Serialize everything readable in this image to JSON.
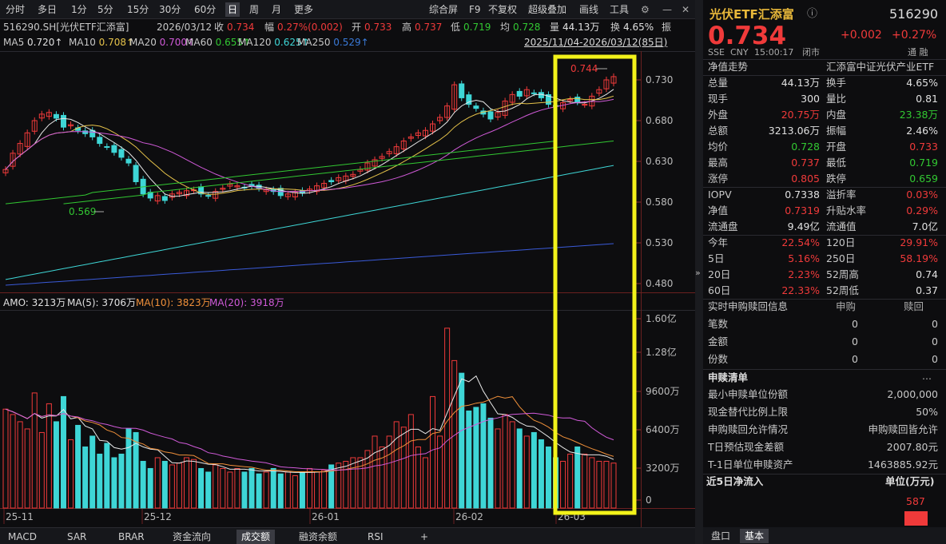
{
  "toolbar": {
    "left": [
      "分时",
      "多日",
      "1分",
      "5分",
      "15分",
      "30分",
      "60分",
      "日",
      "周",
      "月",
      "更多"
    ],
    "active": "日",
    "right": [
      "综合屏",
      "F9",
      "不复权",
      "超级叠加",
      "画线",
      "工具"
    ]
  },
  "info": {
    "code": "516290.SH[光伏ETF汇添富]",
    "date": "2026/03/12",
    "close_l": "收",
    "close": "0.734",
    "amp_l": "幅",
    "amp": "0.27%(0.002)",
    "open_l": "开",
    "open": "0.733",
    "high_l": "高",
    "high": "0.737",
    "low_l": "低",
    "low": "0.719",
    "avg_l": "均",
    "avg": "0.728",
    "vol_l": "量",
    "vol": "44.13万",
    "turn_l": "换",
    "turn": "4.65%",
    "amp2": "振",
    "range": "2025/11/04-2026/03/12(85日)"
  },
  "ma_line": [
    {
      "t": "MA5",
      "v": "0.720↑",
      "c": "wht"
    },
    {
      "t": "MA10",
      "v": "0.708↑",
      "c": "yel"
    },
    {
      "t": "MA20",
      "v": "0.700↑",
      "c": "mag"
    },
    {
      "t": "MA60",
      "v": "0.655↑",
      "c": "grn"
    },
    {
      "t": "MA120",
      "v": "0.625↑",
      "c": "cyn"
    },
    {
      "t": "MA250",
      "v": "0.529↑",
      "c": "blu"
    }
  ],
  "amo_line": {
    "amo": "AMO: 3213万",
    "ma5": "MA(5): 3706万",
    "ma10": "MA(10): 3823万",
    "ma20": "MA(20): 3918万"
  },
  "price_axis": [
    "0.730",
    "0.680",
    "0.630",
    "0.580",
    "0.530",
    "0.480"
  ],
  "vol_axis": [
    "1.60亿",
    "1.28亿",
    "9600万",
    "6400万",
    "3200万",
    "0"
  ],
  "date_axis": [
    "25-11",
    "25-12",
    "26-01",
    "26-02",
    "26-03"
  ],
  "chart_labels": {
    "high": "0.744",
    "low": "0.569"
  },
  "bottom_tabs": [
    "MACD",
    "SAR",
    "BRAR",
    "资金流向",
    "成交额",
    "融资余额",
    "RSI",
    "+"
  ],
  "bottom_active": "成交额",
  "right": {
    "title": "光伏ETF汇添富",
    "code": "516290",
    "price": "0.734",
    "change": "+0.002",
    "pct": "+0.27%",
    "sub": [
      "SSE",
      "CNY",
      "15:00:17",
      "闭市"
    ],
    "tongrong": "通 融",
    "nav_label": "净值走势",
    "fund_name": "汇添富中证光伏产业ETF",
    "stats": [
      [
        "总量",
        "44.13万",
        "wht",
        "换手",
        "4.65%",
        "wht"
      ],
      [
        "现手",
        "300",
        "wht",
        "量比",
        "0.81",
        "wht"
      ],
      [
        "外盘",
        "20.75万",
        "red",
        "内盘",
        "23.38万",
        "grn"
      ],
      [
        "总额",
        "3213.06万",
        "wht",
        "振幅",
        "2.46%",
        "wht"
      ],
      [
        "均价",
        "0.728",
        "grn",
        "开盘",
        "0.733",
        "red"
      ],
      [
        "最高",
        "0.737",
        "red",
        "最低",
        "0.719",
        "grn"
      ],
      [
        "涨停",
        "0.805",
        "red",
        "跌停",
        "0.659",
        "grn"
      ]
    ],
    "stats2": [
      [
        "IOPV",
        "0.7338",
        "wht",
        "溢折率",
        "0.03%",
        "red"
      ],
      [
        "净值",
        "0.7319",
        "red",
        "升贴水率",
        "0.29%",
        "red"
      ],
      [
        "流通盘",
        "9.49亿",
        "wht",
        "流通值",
        "7.0亿",
        "wht"
      ]
    ],
    "perf": [
      [
        "今年",
        "22.54%",
        "red",
        "120日",
        "29.91%",
        "red"
      ],
      [
        "5日",
        "5.16%",
        "red",
        "250日",
        "58.19%",
        "red"
      ],
      [
        "20日",
        "2.23%",
        "red",
        "52周高",
        "0.74",
        "wht"
      ],
      [
        "60日",
        "22.33%",
        "red",
        "52周低",
        "0.37",
        "wht"
      ]
    ],
    "sub_title": "实时申购赎回信息",
    "sub_cols": [
      "申购",
      "赎回"
    ],
    "sub_rows": [
      [
        "笔数",
        "0",
        "0"
      ],
      [
        "金额",
        "0",
        "0"
      ],
      [
        "份数",
        "0",
        "0"
      ]
    ],
    "list_title": "申赎清单",
    "list_more": "...",
    "list_rows": [
      [
        "最小申赎单位份额",
        "2,000,000"
      ],
      [
        "现金替代比例上限",
        "50%"
      ],
      [
        "申购赎回允许情况",
        "申购赎回皆允许"
      ],
      [
        "T日预估现金差额",
        "2007.80元"
      ],
      [
        "T-1日单位申赎资产",
        "1463885.92元"
      ]
    ],
    "flow_title": "近5日净流入",
    "flow_unit": "单位(万元)",
    "flow_value": "587",
    "tabs": [
      "盘口",
      "基本"
    ],
    "tab_active": "基本"
  },
  "colors": {
    "up": "#f03a3a",
    "down": "#3ed6d6",
    "highlight": "#f2f21a"
  }
}
